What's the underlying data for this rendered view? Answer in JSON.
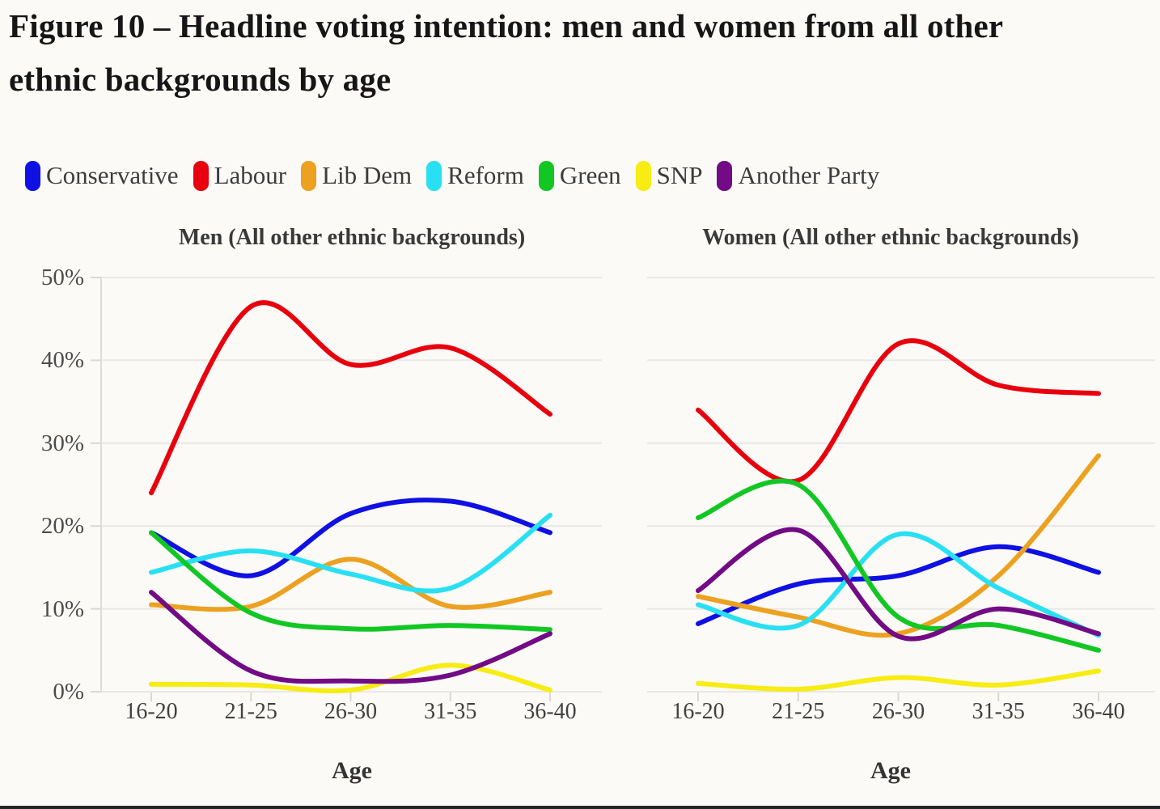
{
  "header": {
    "title": "Figure 10 – Headline voting intention: men and women from all other ethnic backgrounds by age",
    "title_lines": [
      "Figure 10 – Headline voting intention: men and women from all other",
      "ethnic backgrounds by age"
    ]
  },
  "legend": {
    "position": "top",
    "items": [
      {
        "label": "Conservative",
        "color": "#0f10e3"
      },
      {
        "label": "Labour",
        "color": "#e8000d"
      },
      {
        "label": "Lib Dem",
        "color": "#eca120"
      },
      {
        "label": "Reform",
        "color": "#29e0f2"
      },
      {
        "label": "Green",
        "color": "#12c724"
      },
      {
        "label": "SNP",
        "color": "#f7ec13"
      },
      {
        "label": "Another Party",
        "color": "#720b85"
      }
    ]
  },
  "axes": {
    "y_tick_labels": [
      "50%",
      "40%",
      "30%",
      "20%",
      "10%",
      "0%"
    ],
    "ylim": [
      0,
      50
    ],
    "grid": true
  },
  "chart_data": [
    {
      "type": "line",
      "title": "Men (All other ethnic backgrounds)",
      "xlabel": "Age",
      "ylabel": "",
      "ylim": [
        0,
        50
      ],
      "grid": true,
      "legend_position": "top",
      "categories": [
        "16-20",
        "21-25",
        "26-30",
        "31-35",
        "36-40"
      ],
      "series": [
        {
          "name": "Conservative",
          "values": [
            19.2,
            14,
            21.5,
            23,
            19.2
          ]
        },
        {
          "name": "Labour",
          "values": [
            24,
            46.5,
            39.5,
            41.5,
            33.5
          ]
        },
        {
          "name": "Lib Dem",
          "values": [
            10.5,
            10.3,
            16,
            10.3,
            12
          ]
        },
        {
          "name": "Reform",
          "values": [
            14.4,
            17,
            14.2,
            12.5,
            21.3
          ]
        },
        {
          "name": "Green",
          "values": [
            19.2,
            9.5,
            7.6,
            8,
            7.5
          ]
        },
        {
          "name": "SNP",
          "values": [
            0.9,
            0.8,
            0.2,
            3.2,
            0.2
          ]
        },
        {
          "name": "Another Party",
          "values": [
            12,
            2.5,
            1.3,
            2,
            7
          ]
        }
      ]
    },
    {
      "type": "line",
      "title": "Women (All other ethnic backgrounds)",
      "xlabel": "Age",
      "ylabel": "",
      "ylim": [
        0,
        50
      ],
      "grid": true,
      "legend_position": "top",
      "categories": [
        "16-20",
        "21-25",
        "26-30",
        "31-35",
        "36-40"
      ],
      "series": [
        {
          "name": "Conservative",
          "values": [
            8.2,
            13,
            14,
            17.5,
            14.4
          ]
        },
        {
          "name": "Labour",
          "values": [
            34,
            25.5,
            42,
            37,
            36
          ]
        },
        {
          "name": "Lib Dem",
          "values": [
            11.5,
            9,
            7,
            14,
            28.5
          ]
        },
        {
          "name": "Reform",
          "values": [
            10.5,
            8,
            19,
            12.5,
            6.8
          ]
        },
        {
          "name": "Green",
          "values": [
            21,
            25,
            9,
            8,
            5
          ]
        },
        {
          "name": "SNP",
          "values": [
            1,
            0.3,
            1.7,
            0.8,
            2.5
          ]
        },
        {
          "name": "Another Party",
          "values": [
            12.2,
            19.5,
            6.7,
            10,
            7
          ]
        }
      ]
    }
  ]
}
